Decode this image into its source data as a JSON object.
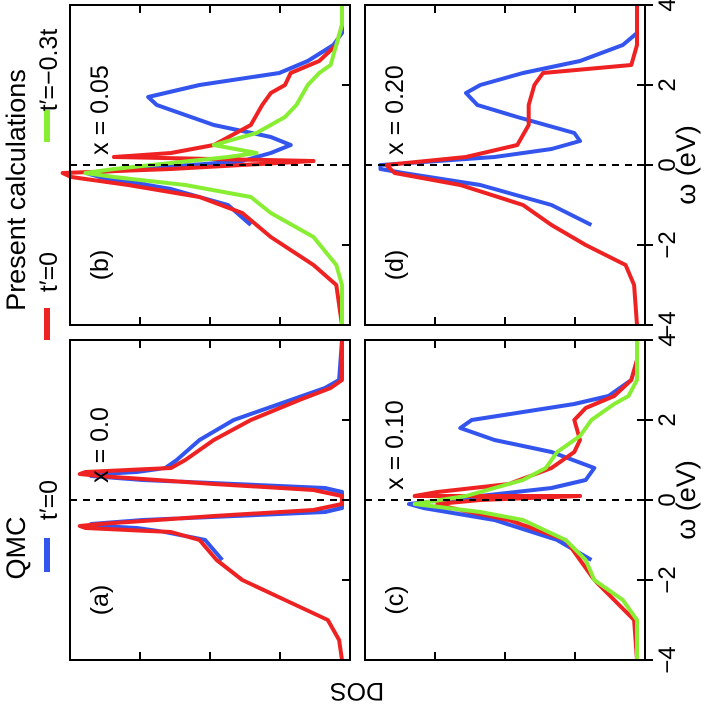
{
  "figure": {
    "ylabel": "DOS",
    "xlabel": "ω (eV)",
    "legend_qmc_title": "QMC",
    "legend_present_title": "Present calculations"
  },
  "chart_data": [
    {
      "type": "line",
      "panel": "(a)",
      "annotation": "x = 0.0",
      "xlabel": "ω (eV)",
      "ylabel": "DOS",
      "xlim": [
        -4,
        4
      ],
      "xticks": [
        -4,
        -2,
        0,
        2,
        4
      ],
      "y_tick_labels_shown": false,
      "zero_line": true,
      "series": [
        {
          "name": "t′=0",
          "group": "QMC",
          "color": "#3355ee",
          "points": [
            [
              -1.5,
              0.42
            ],
            [
              -1.0,
              0.48
            ],
            [
              -0.8,
              0.62
            ],
            [
              -0.7,
              0.72
            ],
            [
              -0.65,
              0.85
            ],
            [
              -0.6,
              0.88
            ],
            [
              -0.5,
              0.7
            ],
            [
              -0.3,
              0.06
            ],
            [
              -0.2,
              0.0
            ],
            [
              0.2,
              0.0
            ],
            [
              0.3,
              0.06
            ],
            [
              0.5,
              0.7
            ],
            [
              0.6,
              0.88
            ],
            [
              0.65,
              0.85
            ],
            [
              0.7,
              0.72
            ],
            [
              0.8,
              0.62
            ],
            [
              1.0,
              0.58
            ],
            [
              1.5,
              0.5
            ],
            [
              2.0,
              0.38
            ],
            [
              2.5,
              0.18
            ],
            [
              2.8,
              0.06
            ],
            [
              3.0,
              0.01
            ],
            [
              4.0,
              0.0
            ]
          ]
        },
        {
          "name": "t′=0",
          "group": "Present calculations",
          "color": "#ee2222",
          "points": [
            [
              -4.0,
              0.0
            ],
            [
              -3.5,
              0.01
            ],
            [
              -3.0,
              0.05
            ],
            [
              -2.5,
              0.2
            ],
            [
              -2.0,
              0.35
            ],
            [
              -1.5,
              0.44
            ],
            [
              -1.0,
              0.5
            ],
            [
              -0.8,
              0.6
            ],
            [
              -0.7,
              0.9
            ],
            [
              -0.65,
              0.92
            ],
            [
              -0.6,
              0.85
            ],
            [
              -0.4,
              0.45
            ],
            [
              -0.25,
              0.1
            ],
            [
              -0.1,
              0.0
            ],
            [
              0.1,
              0.0
            ],
            [
              0.25,
              0.1
            ],
            [
              0.4,
              0.45
            ],
            [
              0.6,
              0.85
            ],
            [
              0.65,
              0.92
            ],
            [
              0.7,
              0.9
            ],
            [
              0.8,
              0.6
            ],
            [
              1.0,
              0.55
            ],
            [
              1.5,
              0.45
            ],
            [
              2.0,
              0.32
            ],
            [
              2.5,
              0.15
            ],
            [
              2.8,
              0.04
            ],
            [
              3.0,
              0.0
            ],
            [
              4.0,
              0.0
            ]
          ]
        }
      ]
    },
    {
      "type": "line",
      "panel": "(b)",
      "annotation": "x = 0.05",
      "xlabel": "ω (eV)",
      "ylabel": "DOS",
      "xlim": [
        -4,
        4
      ],
      "xticks": [
        -4,
        -2,
        0,
        2,
        4
      ],
      "y_tick_labels_shown": false,
      "zero_line": true,
      "series": [
        {
          "name": "t′=0",
          "group": "QMC",
          "color": "#3355ee",
          "points": [
            [
              -1.5,
              0.32
            ],
            [
              -1.0,
              0.4
            ],
            [
              -0.6,
              0.6
            ],
            [
              -0.3,
              0.85
            ],
            [
              -0.2,
              0.9
            ],
            [
              -0.1,
              0.7
            ],
            [
              0.1,
              0.35
            ],
            [
              0.3,
              0.25
            ],
            [
              0.5,
              0.18
            ],
            [
              0.7,
              0.25
            ],
            [
              1.0,
              0.45
            ],
            [
              1.5,
              0.65
            ],
            [
              1.7,
              0.68
            ],
            [
              2.0,
              0.5
            ],
            [
              2.3,
              0.22
            ],
            [
              2.6,
              0.12
            ],
            [
              3.0,
              0.03
            ],
            [
              3.3,
              0.0
            ],
            [
              4.0,
              0.0
            ]
          ]
        },
        {
          "name": "t′=0",
          "group": "Present calculations",
          "color": "#ee2222",
          "points": [
            [
              -4.0,
              0.0
            ],
            [
              -3.0,
              0.02
            ],
            [
              -2.5,
              0.1
            ],
            [
              -1.8,
              0.25
            ],
            [
              -1.2,
              0.35
            ],
            [
              -0.8,
              0.5
            ],
            [
              -0.5,
              0.75
            ],
            [
              -0.3,
              0.95
            ],
            [
              -0.2,
              0.98
            ],
            [
              -0.1,
              0.6
            ],
            [
              0.1,
              0.1
            ],
            [
              0.2,
              0.8
            ],
            [
              0.3,
              0.6
            ],
            [
              0.5,
              0.45
            ],
            [
              1.0,
              0.32
            ],
            [
              1.5,
              0.28
            ],
            [
              1.8,
              0.25
            ],
            [
              2.0,
              0.2
            ],
            [
              2.3,
              0.18
            ],
            [
              2.6,
              0.08
            ],
            [
              3.0,
              0.02
            ],
            [
              3.5,
              0.0
            ],
            [
              4.0,
              0.0
            ]
          ]
        },
        {
          "name": "t′=−0.3t",
          "group": "Present calculations",
          "color": "#88ee33",
          "points": [
            [
              -4.0,
              0.0
            ],
            [
              -3.0,
              0.0
            ],
            [
              -2.5,
              0.02
            ],
            [
              -1.8,
              0.1
            ],
            [
              -1.2,
              0.25
            ],
            [
              -0.8,
              0.32
            ],
            [
              -0.5,
              0.55
            ],
            [
              -0.3,
              0.8
            ],
            [
              -0.2,
              0.9
            ],
            [
              -0.1,
              0.8
            ],
            [
              0.2,
              0.4
            ],
            [
              0.3,
              0.3
            ],
            [
              0.5,
              0.45
            ],
            [
              0.8,
              0.3
            ],
            [
              1.2,
              0.2
            ],
            [
              1.5,
              0.16
            ],
            [
              2.0,
              0.12
            ],
            [
              2.3,
              0.08
            ],
            [
              2.5,
              0.04
            ],
            [
              3.0,
              0.02
            ],
            [
              3.5,
              0.0
            ],
            [
              4.0,
              0.0
            ]
          ]
        }
      ]
    },
    {
      "type": "line",
      "panel": "(c)",
      "annotation": "x = 0.10",
      "xlabel": "ω (eV)",
      "ylabel": "DOS",
      "xlim": [
        -4,
        4
      ],
      "xticks": [
        -4,
        -2,
        0,
        2,
        4
      ],
      "y_tick_labels_shown": false,
      "zero_line": true,
      "series": [
        {
          "name": "t′=0",
          "group": "QMC",
          "color": "#3355ee",
          "points": [
            [
              -1.5,
              0.16
            ],
            [
              -1.0,
              0.28
            ],
            [
              -0.5,
              0.5
            ],
            [
              -0.2,
              0.75
            ],
            [
              -0.1,
              0.8
            ],
            [
              0.1,
              0.55
            ],
            [
              0.3,
              0.3
            ],
            [
              0.5,
              0.18
            ],
            [
              0.8,
              0.15
            ],
            [
              1.2,
              0.3
            ],
            [
              1.5,
              0.5
            ],
            [
              1.8,
              0.62
            ],
            [
              2.0,
              0.58
            ],
            [
              2.2,
              0.4
            ],
            [
              2.4,
              0.22
            ],
            [
              2.6,
              0.1
            ],
            [
              3.0,
              0.02
            ],
            [
              3.5,
              0.0
            ],
            [
              4.0,
              0.0
            ]
          ]
        },
        {
          "name": "t′=0",
          "group": "Present calculations",
          "color": "#ee2222",
          "points": [
            [
              -4.0,
              0.0
            ],
            [
              -3.0,
              0.01
            ],
            [
              -2.5,
              0.08
            ],
            [
              -2.0,
              0.15
            ],
            [
              -1.5,
              0.2
            ],
            [
              -1.0,
              0.25
            ],
            [
              -0.5,
              0.45
            ],
            [
              -0.2,
              0.65
            ],
            [
              -0.1,
              0.7
            ],
            [
              0.0,
              0.55
            ],
            [
              0.1,
              0.2
            ],
            [
              0.1,
              0.78
            ],
            [
              0.2,
              0.7
            ],
            [
              0.4,
              0.45
            ],
            [
              0.8,
              0.3
            ],
            [
              1.2,
              0.22
            ],
            [
              1.5,
              0.2
            ],
            [
              2.0,
              0.22
            ],
            [
              2.3,
              0.18
            ],
            [
              2.6,
              0.08
            ],
            [
              3.0,
              0.02
            ],
            [
              3.5,
              0.0
            ],
            [
              4.0,
              0.0
            ]
          ]
        },
        {
          "name": "t′=−0.3t",
          "group": "Present calculations",
          "color": "#88ee33",
          "points": [
            [
              -4.0,
              0.0
            ],
            [
              -3.0,
              0.0
            ],
            [
              -2.5,
              0.05
            ],
            [
              -2.0,
              0.15
            ],
            [
              -1.5,
              0.18
            ],
            [
              -1.0,
              0.25
            ],
            [
              -0.5,
              0.4
            ],
            [
              -0.3,
              0.55
            ],
            [
              -0.1,
              0.78
            ],
            [
              0.1,
              0.6
            ],
            [
              0.3,
              0.5
            ],
            [
              0.5,
              0.4
            ],
            [
              0.8,
              0.32
            ],
            [
              1.2,
              0.28
            ],
            [
              1.6,
              0.2
            ],
            [
              2.0,
              0.16
            ],
            [
              2.4,
              0.08
            ],
            [
              2.6,
              0.03
            ],
            [
              3.0,
              0.0
            ],
            [
              4.0,
              0.0
            ]
          ]
        }
      ]
    },
    {
      "type": "line",
      "panel": "(d)",
      "annotation": "x = 0.20",
      "xlabel": "ω (eV)",
      "ylabel": "DOS",
      "xlim": [
        -4,
        4
      ],
      "xticks": [
        -4,
        -2,
        0,
        2,
        4
      ],
      "y_tick_labels_shown": false,
      "zero_line": true,
      "series": [
        {
          "name": "t′=0",
          "group": "QMC",
          "color": "#3355ee",
          "points": [
            [
              -1.5,
              0.16
            ],
            [
              -1.0,
              0.3
            ],
            [
              -0.5,
              0.55
            ],
            [
              -0.2,
              0.82
            ],
            [
              -0.1,
              0.9
            ],
            [
              0.0,
              0.9
            ],
            [
              0.2,
              0.5
            ],
            [
              0.4,
              0.3
            ],
            [
              0.6,
              0.2
            ],
            [
              0.8,
              0.22
            ],
            [
              1.2,
              0.42
            ],
            [
              1.5,
              0.56
            ],
            [
              1.8,
              0.6
            ],
            [
              2.0,
              0.55
            ],
            [
              2.3,
              0.4
            ],
            [
              2.6,
              0.2
            ],
            [
              3.0,
              0.05
            ],
            [
              3.3,
              0.0
            ],
            [
              4.0,
              0.0
            ]
          ]
        },
        {
          "name": "t′=0",
          "group": "Present calculations",
          "color": "#ee2222",
          "points": [
            [
              -4.0,
              0.0
            ],
            [
              -3.0,
              0.01
            ],
            [
              -2.5,
              0.04
            ],
            [
              -2.0,
              0.18
            ],
            [
              -1.5,
              0.3
            ],
            [
              -1.0,
              0.4
            ],
            [
              -0.5,
              0.62
            ],
            [
              -0.2,
              0.85
            ],
            [
              0.0,
              0.88
            ],
            [
              0.2,
              0.6
            ],
            [
              0.5,
              0.42
            ],
            [
              1.0,
              0.38
            ],
            [
              1.5,
              0.38
            ],
            [
              2.0,
              0.36
            ],
            [
              2.3,
              0.33
            ],
            [
              2.5,
              0.02
            ],
            [
              3.0,
              0.0
            ],
            [
              4.0,
              0.0
            ]
          ]
        }
      ]
    }
  ]
}
